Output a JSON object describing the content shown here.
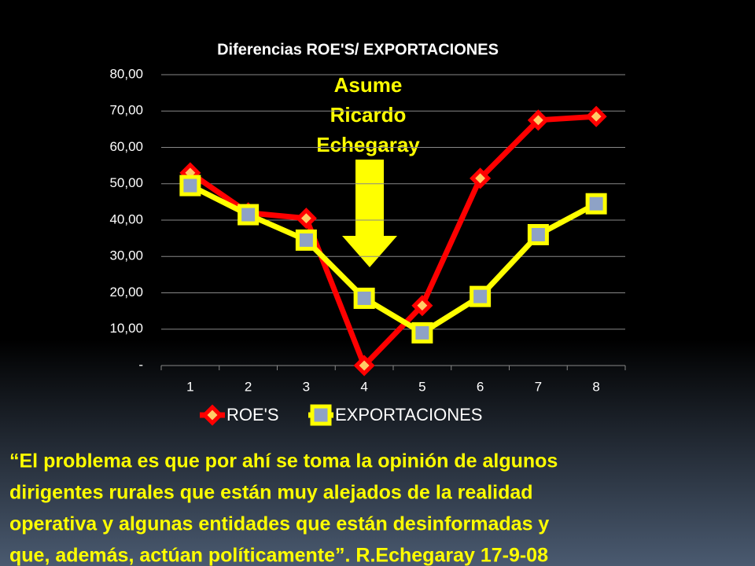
{
  "chart_data": {
    "type": "line",
    "title": "Diferencias ROE'S/ EXPORTACIONES",
    "categories": [
      "1",
      "2",
      "3",
      "4",
      "5",
      "6",
      "7",
      "8"
    ],
    "series": [
      {
        "name": "ROE'S",
        "color": "#ff0000",
        "marker": "diamond",
        "marker_color": "#ffcc66",
        "values": [
          53,
          42,
          40.5,
          0,
          16.5,
          51.5,
          67.5,
          68.5
        ]
      },
      {
        "name": "EXPORTACIONES",
        "color": "#ffff00",
        "marker": "square",
        "marker_color": "#8ea2c6",
        "values": [
          49.5,
          41.5,
          34.5,
          18.5,
          9,
          19,
          36,
          44.5
        ]
      }
    ],
    "ylim": [
      0,
      80
    ],
    "yticks": [
      {
        "value": 0,
        "label": "-"
      },
      {
        "value": 10,
        "label": "10,00"
      },
      {
        "value": 20,
        "label": "20,00"
      },
      {
        "value": 30,
        "label": "30,00"
      },
      {
        "value": 40,
        "label": "40,00"
      },
      {
        "value": 50,
        "label": "50,00"
      },
      {
        "value": 60,
        "label": "60,00"
      },
      {
        "value": 70,
        "label": "70,00"
      },
      {
        "value": 80,
        "label": "80,00"
      }
    ],
    "grid": true,
    "legend": "bottom",
    "annotation": [
      "Asume",
      "Ricardo",
      "Echegaray"
    ]
  },
  "quote": [
    "“El problema es que por ahí se toma la opinión de algunos",
    "dirigentes rurales que están muy alejados de la realidad",
    "operativa y algunas entidades que están desinformadas y",
    "que, además, actúan políticamente”. R.Echegaray 17-9-08"
  ]
}
